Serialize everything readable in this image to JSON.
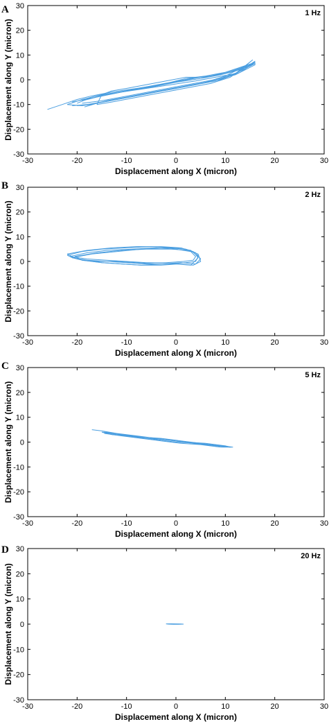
{
  "chart_data": [
    {
      "type": "line",
      "panel_label": "A",
      "annotation": "1 Hz",
      "xlabel": "Displacement along X (micron)",
      "ylabel": "Displacement along Y (micron)",
      "xlim": [
        -30,
        30
      ],
      "ylim": [
        -30,
        30
      ],
      "xticks": [
        -30,
        -20,
        -10,
        0,
        10,
        20,
        30
      ],
      "yticks": [
        -30,
        -20,
        -10,
        0,
        10,
        20,
        30
      ],
      "grid": false,
      "color": "#4a9ee0",
      "series": [
        {
          "x": [
            -26,
            -23,
            -20,
            -17,
            -13,
            -8,
            -3,
            2,
            6,
            10,
            13,
            16,
            16,
            12,
            8,
            4,
            0,
            -4,
            -8,
            -12,
            -16,
            -19,
            -22
          ],
          "y": [
            -12,
            -10,
            -8,
            -6.5,
            -5,
            -3.5,
            -2,
            0.5,
            1.5,
            3,
            5,
            7,
            6,
            2,
            0,
            -2,
            -3.5,
            -5,
            -6.5,
            -8,
            -9.5,
            -10.5,
            -10
          ]
        },
        {
          "x": [
            -22,
            -19,
            -15,
            -10,
            -5,
            0,
            5,
            9,
            12,
            15,
            16,
            13,
            9,
            5,
            1,
            -3,
            -7,
            -11,
            -15,
            -18,
            -21
          ],
          "y": [
            -10,
            -8,
            -6,
            -4.5,
            -3,
            -1,
            0.5,
            2,
            4,
            6,
            7,
            3,
            0,
            -1.5,
            -3,
            -4.5,
            -6,
            -7.5,
            -9,
            -10,
            -10.5
          ]
        },
        {
          "x": [
            -20,
            -17,
            -13,
            -9,
            -5,
            -1,
            3,
            7,
            11,
            14,
            15.5,
            12,
            8,
            4,
            0,
            -4,
            -8,
            -12,
            -16,
            -18.5
          ],
          "y": [
            -9.5,
            -7,
            -5.5,
            -4,
            -2.5,
            -1,
            0.5,
            1.5,
            3,
            5.5,
            8,
            2.5,
            -0.5,
            -2,
            -3.5,
            -5,
            -6.5,
            -8,
            -9.5,
            -11
          ]
        },
        {
          "x": [
            -21,
            -16,
            -11,
            -6,
            -1,
            4,
            8,
            12,
            14,
            16,
            13,
            10,
            6,
            2,
            -2,
            -6,
            -10,
            -14,
            -17,
            -20
          ],
          "y": [
            -9,
            -7,
            -5,
            -3.5,
            -2,
            -0.5,
            1,
            2.5,
            4.5,
            6.5,
            4.5,
            1.5,
            -1,
            -2.5,
            -4,
            -5.5,
            -7,
            -8.5,
            -10,
            -10.5
          ]
        },
        {
          "x": [
            -16,
            -15,
            -13,
            -10,
            -6,
            -2,
            2,
            6,
            10,
            13,
            14.5,
            11,
            7,
            3,
            -1,
            -5,
            -9,
            -13,
            -16
          ],
          "y": [
            -10,
            -6,
            -4.5,
            -3.5,
            -2,
            -0.5,
            1,
            1,
            3,
            5,
            6,
            1,
            -1.5,
            -3,
            -4.5,
            -6,
            -7.5,
            -9,
            -10
          ]
        },
        {
          "x": [
            -19,
            -15,
            -11,
            -7,
            -3,
            1,
            5,
            9,
            12,
            15,
            16,
            12.5,
            9,
            5,
            1,
            -3,
            -7,
            -11,
            -15,
            -19
          ],
          "y": [
            -8.5,
            -6.5,
            -5,
            -3.5,
            -2,
            -0.5,
            1,
            2,
            3.5,
            5.5,
            7.5,
            3,
            0.5,
            -1,
            -2.5,
            -4,
            -5.5,
            -7,
            -8.5,
            -9.5
          ]
        }
      ]
    },
    {
      "type": "line",
      "panel_label": "B",
      "annotation": "2 Hz",
      "xlabel": "Displacement along X (micron)",
      "ylabel": "Displacement along Y (micron)",
      "xlim": [
        -30,
        30
      ],
      "ylim": [
        -30,
        30
      ],
      "xticks": [
        -30,
        -20,
        -10,
        0,
        10,
        20,
        30
      ],
      "yticks": [
        -30,
        -20,
        -10,
        0,
        10,
        20,
        30
      ],
      "grid": false,
      "color": "#4a9ee0",
      "series": [
        {
          "x": [
            -22,
            -19,
            -15,
            -10,
            -5,
            0,
            3,
            4.5,
            4,
            2,
            -2,
            -6,
            -10,
            -14,
            -18,
            -21,
            -22
          ],
          "y": [
            2.5,
            4,
            5,
            5.5,
            6,
            5.5,
            4.5,
            2,
            0,
            -0.5,
            -1,
            -1,
            -0.5,
            0,
            0.5,
            1.5,
            2.5
          ]
        },
        {
          "x": [
            -21.5,
            -18,
            -14,
            -9,
            -4,
            0,
            3,
            4,
            3.5,
            1.5,
            -2,
            -6,
            -10,
            -14,
            -18,
            -21.5
          ],
          "y": [
            2,
            3.5,
            4.5,
            5,
            5.5,
            5,
            4,
            2,
            0.5,
            0,
            -0.5,
            -0.5,
            0,
            0.5,
            1,
            2
          ]
        },
        {
          "x": [
            -21,
            -17,
            -12,
            -7,
            -2,
            2,
            4,
            5,
            4,
            1,
            -3,
            -7,
            -11,
            -15,
            -19,
            -21
          ],
          "y": [
            1.5,
            3,
            4,
            5,
            5.5,
            5,
            3.5,
            1,
            -1,
            -0.5,
            -1,
            -1.5,
            -1,
            -0.5,
            0.5,
            1.5
          ]
        },
        {
          "x": [
            -22,
            -18,
            -13,
            -8,
            -3,
            1,
            3.5,
            4.5,
            3,
            0,
            -4,
            -8,
            -12,
            -16,
            -20,
            -22
          ],
          "y": [
            3,
            4.5,
            5.5,
            6,
            6,
            5.5,
            4,
            1.5,
            -1.5,
            -1,
            -1,
            -0.5,
            0,
            0,
            1,
            3
          ]
        },
        {
          "x": [
            -20.5,
            -16,
            -11,
            -6,
            -1,
            2.5,
            4.5,
            5,
            3.5,
            0.5,
            -3,
            -7,
            -11,
            -15,
            -19,
            -20.5
          ],
          "y": [
            2,
            3.5,
            4.5,
            5,
            5,
            4.5,
            3,
            0,
            -1.5,
            -1,
            -1.5,
            -1.5,
            -1,
            -0.5,
            0.5,
            2
          ]
        }
      ]
    },
    {
      "type": "line",
      "panel_label": "C",
      "annotation": "5 Hz",
      "xlabel": "Displacement along X (micron)",
      "ylabel": "Displacement along Y (micron)",
      "xlim": [
        -30,
        30
      ],
      "ylim": [
        -30,
        30
      ],
      "xticks": [
        -30,
        -20,
        -10,
        0,
        10,
        20,
        30
      ],
      "yticks": [
        -30,
        -20,
        -10,
        0,
        10,
        20,
        30
      ],
      "grid": false,
      "color": "#4a9ee0",
      "series": [
        {
          "x": [
            -17,
            -15,
            -12,
            -8,
            -4,
            0,
            4,
            8,
            11,
            10,
            6,
            2,
            -2,
            -6,
            -10,
            -13,
            -15
          ],
          "y": [
            5,
            4.5,
            3.5,
            2.5,
            1.5,
            0.5,
            -0.5,
            -1.5,
            -2,
            -1.5,
            -0.5,
            0,
            1,
            1.5,
            2.5,
            3,
            4
          ]
        },
        {
          "x": [
            -15,
            -12,
            -8,
            -4,
            0,
            4,
            8,
            11,
            9,
            5,
            1,
            -3,
            -7,
            -11,
            -14,
            -15
          ],
          "y": [
            4,
            3,
            2,
            1,
            0,
            -0.5,
            -1.5,
            -2,
            -1.5,
            -0.5,
            0.5,
            1.5,
            2,
            3,
            4,
            4
          ]
        },
        {
          "x": [
            -14.5,
            -11,
            -7,
            -3,
            1,
            5,
            9,
            11.5,
            9.5,
            5.5,
            1.5,
            -2.5,
            -6.5,
            -10.5,
            -14.5
          ],
          "y": [
            3.5,
            2.5,
            1.5,
            0.5,
            -0.5,
            -1,
            -2,
            -2,
            -1.5,
            -1,
            0,
            1,
            2,
            3,
            4
          ]
        }
      ]
    },
    {
      "type": "line",
      "panel_label": "D",
      "annotation": "20 Hz",
      "xlabel": "Displacement along X (micron)",
      "ylabel": "Displacement along Y (micron)",
      "xlim": [
        -30,
        30
      ],
      "ylim": [
        -30,
        30
      ],
      "xticks": [
        -30,
        -20,
        -10,
        0,
        10,
        20,
        30
      ],
      "yticks": [
        -30,
        -20,
        -10,
        0,
        10,
        20,
        30
      ],
      "grid": false,
      "color": "#4a9ee0",
      "series": [
        {
          "x": [
            -2,
            -1,
            0,
            1,
            1.5,
            0.5,
            -0.5,
            -1.5,
            -2
          ],
          "y": [
            0.1,
            0.15,
            0.1,
            0.05,
            0,
            -0.05,
            -0.05,
            0,
            0.1
          ]
        }
      ]
    }
  ]
}
